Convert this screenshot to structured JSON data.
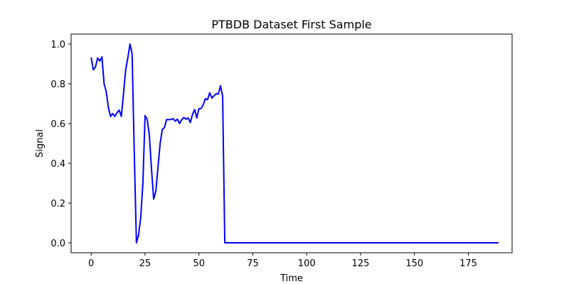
{
  "chart_data": {
    "type": "line",
    "title": "PTBDB Dataset First Sample",
    "xlabel": "Time",
    "ylabel": "Signal",
    "xlim": [
      -9.3,
      195.3
    ],
    "ylim": [
      -0.05,
      1.05
    ],
    "xticks": [
      0,
      25,
      50,
      75,
      100,
      125,
      150,
      175
    ],
    "yticks": [
      0.0,
      0.2,
      0.4,
      0.6,
      0.8,
      1.0
    ],
    "ytick_labels": [
      "0.0",
      "0.2",
      "0.4",
      "0.6",
      "0.8",
      "1.0"
    ],
    "grid": false,
    "legend": "none",
    "series": [
      {
        "color": "#0000ff",
        "y": [
          0.932,
          0.87,
          0.885,
          0.93,
          0.914,
          0.935,
          0.8,
          0.76,
          0.68,
          0.636,
          0.65,
          0.636,
          0.655,
          0.667,
          0.636,
          0.75,
          0.87,
          0.93,
          1.0,
          0.95,
          0.45,
          0.0,
          0.04,
          0.13,
          0.3,
          0.64,
          0.62,
          0.54,
          0.37,
          0.22,
          0.26,
          0.38,
          0.5,
          0.57,
          0.58,
          0.62,
          0.62,
          0.62,
          0.625,
          0.612,
          0.622,
          0.6,
          0.619,
          0.63,
          0.622,
          0.628,
          0.605,
          0.645,
          0.67,
          0.628,
          0.675,
          0.675,
          0.695,
          0.725,
          0.72,
          0.755,
          0.728,
          0.74,
          0.75,
          0.748,
          0.79,
          0.738,
          0.0,
          0.0,
          0.0,
          0.0,
          0.0,
          0.0,
          0.0,
          0.0,
          0.0,
          0.0,
          0.0,
          0.0,
          0.0,
          0.0,
          0.0,
          0.0,
          0.0,
          0.0,
          0.0,
          0.0,
          0.0,
          0.0,
          0.0,
          0.0,
          0.0,
          0.0,
          0.0,
          0.0,
          0.0,
          0.0,
          0.0,
          0.0,
          0.0,
          0.0,
          0.0,
          0.0,
          0.0,
          0.0,
          0.0,
          0.0,
          0.0,
          0.0,
          0.0,
          0.0,
          0.0,
          0.0,
          0.0,
          0.0,
          0.0,
          0.0,
          0.0,
          0.0,
          0.0,
          0.0,
          0.0,
          0.0,
          0.0,
          0.0,
          0.0,
          0.0,
          0.0,
          0.0,
          0.0,
          0.0,
          0.0,
          0.0,
          0.0,
          0.0,
          0.0,
          0.0,
          0.0,
          0.0,
          0.0,
          0.0,
          0.0,
          0.0,
          0.0,
          0.0,
          0.0,
          0.0,
          0.0,
          0.0,
          0.0,
          0.0,
          0.0,
          0.0,
          0.0,
          0.0,
          0.0,
          0.0,
          0.0,
          0.0,
          0.0,
          0.0,
          0.0,
          0.0,
          0.0,
          0.0,
          0.0,
          0.0,
          0.0,
          0.0,
          0.0,
          0.0,
          0.0,
          0.0,
          0.0,
          0.0,
          0.0,
          0.0,
          0.0,
          0.0,
          0.0,
          0.0,
          0.0,
          0.0,
          0.0,
          0.0,
          0.0,
          0.0,
          0.0,
          0.0,
          0.0,
          0.0,
          0.0,
          0.0,
          0.0,
          0.0
        ]
      }
    ]
  }
}
